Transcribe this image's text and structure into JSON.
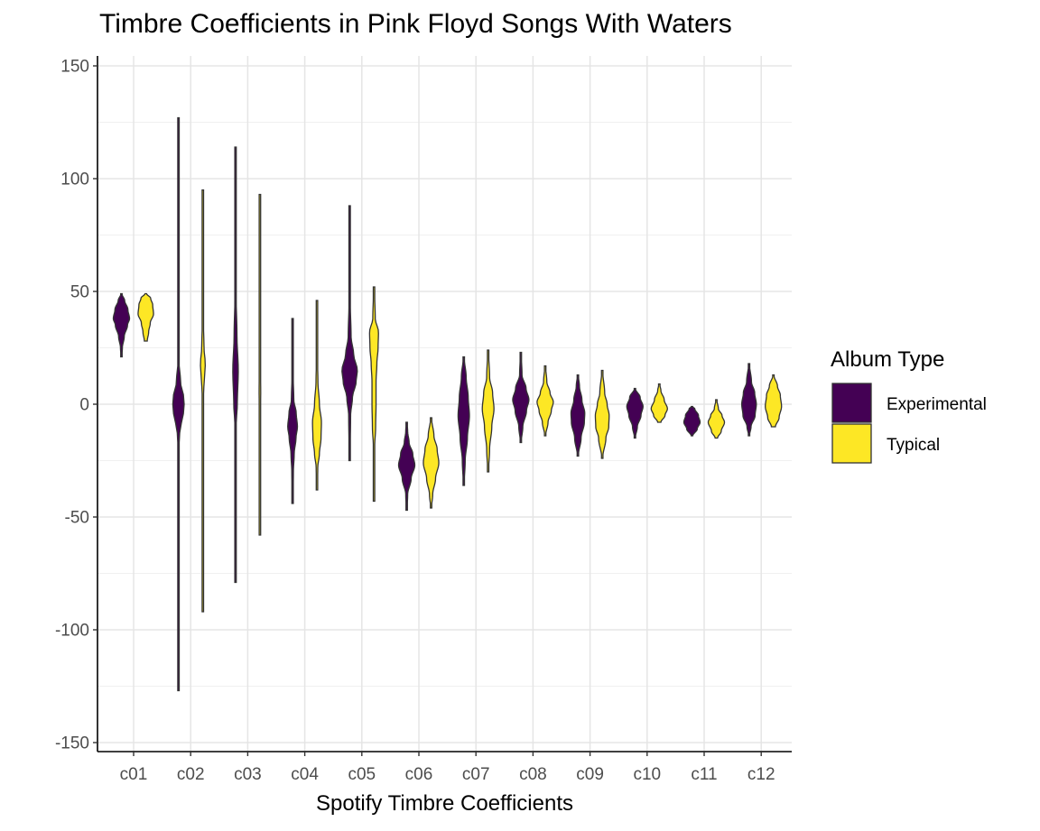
{
  "chart_data": {
    "type": "violin",
    "title": "Timbre Coefficients in Pink Floyd Songs With Waters",
    "xlabel": "Spotify Timbre Coefficients",
    "ylabel": "",
    "ylim": [
      -150,
      150
    ],
    "yticks": [
      150,
      100,
      50,
      0,
      -50,
      -100,
      -150
    ],
    "categories": [
      "c01",
      "c02",
      "c03",
      "c04",
      "c05",
      "c06",
      "c07",
      "c08",
      "c09",
      "c10",
      "c11",
      "c12"
    ],
    "grid": true,
    "legend": {
      "title": "Album Type",
      "placement": "right",
      "entries": [
        {
          "label": "Experimental",
          "color": "#440154"
        },
        {
          "label": "Typical",
          "color": "#FDE725"
        }
      ]
    },
    "series": [
      {
        "name": "Experimental",
        "color": "#440154",
        "violins": [
          {
            "category": "c01",
            "min": 21,
            "max": 49,
            "profile": [
              [
                21,
                0.05
              ],
              [
                25,
                0.12
              ],
              [
                30,
                0.35
              ],
              [
                35,
                0.75
              ],
              [
                38,
                1.0
              ],
              [
                42,
                0.8
              ],
              [
                46,
                0.4
              ],
              [
                49,
                0.05
              ]
            ]
          },
          {
            "category": "c02",
            "min": -127,
            "max": 127,
            "profile": [
              [
                -127,
                0.04
              ],
              [
                -60,
                0.04
              ],
              [
                -15,
                0.05
              ],
              [
                -10,
                0.28
              ],
              [
                -5,
                0.6
              ],
              [
                0,
                0.7
              ],
              [
                5,
                0.6
              ],
              [
                9,
                0.28
              ],
              [
                20,
                0.04
              ],
              [
                127,
                0.04
              ]
            ]
          },
          {
            "category": "c03",
            "min": -79,
            "max": 114,
            "profile": [
              [
                -79,
                0.04
              ],
              [
                -30,
                0.04
              ],
              [
                -10,
                0.06
              ],
              [
                0,
                0.22
              ],
              [
                15,
                0.34
              ],
              [
                30,
                0.18
              ],
              [
                50,
                0.06
              ],
              [
                114,
                0.04
              ]
            ]
          },
          {
            "category": "c04",
            "min": -44,
            "max": 38,
            "profile": [
              [
                -44,
                0.05
              ],
              [
                -30,
                0.1
              ],
              [
                -22,
                0.2
              ],
              [
                -15,
                0.42
              ],
              [
                -10,
                0.6
              ],
              [
                -4,
                0.45
              ],
              [
                2,
                0.15
              ],
              [
                12,
                0.08
              ],
              [
                38,
                0.05
              ]
            ]
          },
          {
            "category": "c05",
            "min": -25,
            "max": 88,
            "profile": [
              [
                -25,
                0.05
              ],
              [
                -5,
                0.12
              ],
              [
                3,
                0.35
              ],
              [
                10,
                0.8
              ],
              [
                15,
                0.95
              ],
              [
                22,
                0.5
              ],
              [
                30,
                0.18
              ],
              [
                45,
                0.08
              ],
              [
                88,
                0.05
              ]
            ]
          },
          {
            "category": "c06",
            "min": -47,
            "max": -8,
            "profile": [
              [
                -47,
                0.05
              ],
              [
                -40,
                0.12
              ],
              [
                -33,
                0.55
              ],
              [
                -27,
                1.0
              ],
              [
                -22,
                0.75
              ],
              [
                -17,
                0.3
              ],
              [
                -12,
                0.12
              ],
              [
                -8,
                0.05
              ]
            ]
          },
          {
            "category": "c07",
            "min": -36,
            "max": 21,
            "profile": [
              [
                -36,
                0.05
              ],
              [
                -25,
                0.18
              ],
              [
                -15,
                0.45
              ],
              [
                -5,
                0.7
              ],
              [
                3,
                0.55
              ],
              [
                12,
                0.3
              ],
              [
                21,
                0.05
              ]
            ]
          },
          {
            "category": "c08",
            "min": -17,
            "max": 23,
            "profile": [
              [
                -17,
                0.05
              ],
              [
                -10,
                0.25
              ],
              [
                -3,
                0.7
              ],
              [
                2,
                1.0
              ],
              [
                7,
                0.65
              ],
              [
                13,
                0.15
              ],
              [
                23,
                0.05
              ]
            ]
          },
          {
            "category": "c09",
            "min": -23,
            "max": 13,
            "profile": [
              [
                -23,
                0.05
              ],
              [
                -15,
                0.4
              ],
              [
                -8,
                0.8
              ],
              [
                -4,
                0.85
              ],
              [
                2,
                0.5
              ],
              [
                8,
                0.2
              ],
              [
                13,
                0.05
              ]
            ]
          },
          {
            "category": "c10",
            "min": -15,
            "max": 7,
            "profile": [
              [
                -15,
                0.05
              ],
              [
                -10,
                0.3
              ],
              [
                -5,
                0.75
              ],
              [
                -1,
                1.0
              ],
              [
                3,
                0.65
              ],
              [
                7,
                0.05
              ]
            ]
          },
          {
            "category": "c11",
            "min": -14,
            "max": -1,
            "profile": [
              [
                -14,
                0.1
              ],
              [
                -11,
                0.65
              ],
              [
                -8,
                1.0
              ],
              [
                -5,
                0.8
              ],
              [
                -2,
                0.35
              ],
              [
                -1,
                0.05
              ]
            ]
          },
          {
            "category": "c12",
            "min": -14,
            "max": 18,
            "profile": [
              [
                -14,
                0.05
              ],
              [
                -10,
                0.25
              ],
              [
                -5,
                0.75
              ],
              [
                0,
                0.9
              ],
              [
                5,
                0.7
              ],
              [
                10,
                0.3
              ],
              [
                18,
                0.05
              ]
            ]
          }
        ]
      },
      {
        "name": "Typical",
        "color": "#FDE725",
        "violins": [
          {
            "category": "c01",
            "min": 28,
            "max": 49,
            "profile": [
              [
                28,
                0.18
              ],
              [
                32,
                0.35
              ],
              [
                36,
                0.55
              ],
              [
                40,
                0.95
              ],
              [
                44,
                0.85
              ],
              [
                47,
                0.6
              ],
              [
                49,
                0.1
              ]
            ]
          },
          {
            "category": "c02",
            "min": -92,
            "max": 95,
            "profile": [
              [
                -92,
                0.04
              ],
              [
                -30,
                0.04
              ],
              [
                5,
                0.05
              ],
              [
                10,
                0.18
              ],
              [
                18,
                0.3
              ],
              [
                25,
                0.14
              ],
              [
                40,
                0.04
              ],
              [
                95,
                0.04
              ]
            ]
          },
          {
            "category": "c03",
            "min": -58,
            "max": 93,
            "profile": [
              [
                -58,
                0.04
              ],
              [
                -20,
                0.04
              ],
              [
                -5,
                0.05
              ],
              [
                5,
                0.1
              ],
              [
                20,
                0.05
              ],
              [
                40,
                0.04
              ],
              [
                93,
                0.04
              ]
            ]
          },
          {
            "category": "c04",
            "min": -38,
            "max": 46,
            "profile": [
              [
                -38,
                0.05
              ],
              [
                -28,
                0.1
              ],
              [
                -22,
                0.3
              ],
              [
                -15,
                0.5
              ],
              [
                -8,
                0.55
              ],
              [
                0,
                0.3
              ],
              [
                10,
                0.12
              ],
              [
                20,
                0.06
              ],
              [
                46,
                0.05
              ]
            ]
          },
          {
            "category": "c05",
            "min": -43,
            "max": 52,
            "profile": [
              [
                -43,
                0.05
              ],
              [
                -20,
                0.06
              ],
              [
                -10,
                0.2
              ],
              [
                0,
                0.25
              ],
              [
                10,
                0.25
              ],
              [
                18,
                0.35
              ],
              [
                25,
                0.5
              ],
              [
                32,
                0.55
              ],
              [
                38,
                0.15
              ],
              [
                52,
                0.05
              ]
            ]
          },
          {
            "category": "c06",
            "min": -46,
            "max": -6,
            "profile": [
              [
                -46,
                0.05
              ],
              [
                -40,
                0.2
              ],
              [
                -33,
                0.55
              ],
              [
                -26,
                0.95
              ],
              [
                -20,
                0.75
              ],
              [
                -14,
                0.35
              ],
              [
                -6,
                0.05
              ]
            ]
          },
          {
            "category": "c07",
            "min": -30,
            "max": 24,
            "profile": [
              [
                -30,
                0.05
              ],
              [
                -20,
                0.18
              ],
              [
                -10,
                0.45
              ],
              [
                -2,
                0.72
              ],
              [
                5,
                0.55
              ],
              [
                12,
                0.18
              ],
              [
                24,
                0.05
              ]
            ]
          },
          {
            "category": "c08",
            "min": -14,
            "max": 17,
            "profile": [
              [
                -14,
                0.05
              ],
              [
                -8,
                0.35
              ],
              [
                -3,
                0.75
              ],
              [
                1,
                1.0
              ],
              [
                5,
                0.6
              ],
              [
                10,
                0.2
              ],
              [
                17,
                0.05
              ]
            ]
          },
          {
            "category": "c09",
            "min": -24,
            "max": 15,
            "profile": [
              [
                -24,
                0.05
              ],
              [
                -15,
                0.45
              ],
              [
                -10,
                0.8
              ],
              [
                -5,
                0.85
              ],
              [
                0,
                0.6
              ],
              [
                5,
                0.3
              ],
              [
                15,
                0.05
              ]
            ]
          },
          {
            "category": "c10",
            "min": -8,
            "max": 9,
            "profile": [
              [
                -8,
                0.2
              ],
              [
                -5,
                0.7
              ],
              [
                -2,
                1.0
              ],
              [
                2,
                0.6
              ],
              [
                6,
                0.2
              ],
              [
                9,
                0.05
              ]
            ]
          },
          {
            "category": "c11",
            "min": -15,
            "max": 2,
            "profile": [
              [
                -15,
                0.15
              ],
              [
                -12,
                0.6
              ],
              [
                -8,
                1.0
              ],
              [
                -5,
                0.7
              ],
              [
                -2,
                0.25
              ],
              [
                2,
                0.05
              ]
            ]
          },
          {
            "category": "c12",
            "min": -10,
            "max": 13,
            "profile": [
              [
                -10,
                0.25
              ],
              [
                -6,
                0.7
              ],
              [
                -1,
                1.0
              ],
              [
                4,
                0.85
              ],
              [
                8,
                0.5
              ],
              [
                13,
                0.05
              ]
            ]
          }
        ]
      }
    ]
  }
}
